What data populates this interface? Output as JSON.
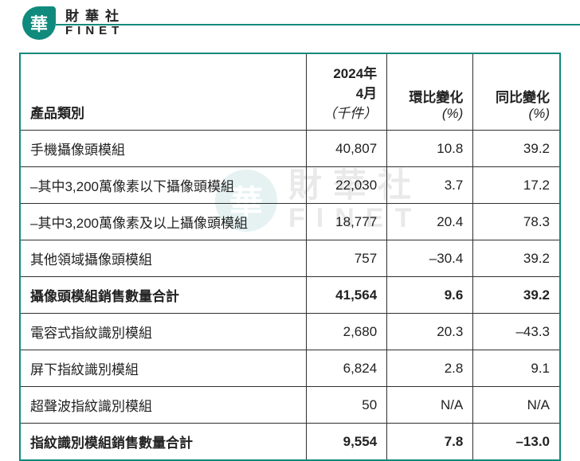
{
  "brand": {
    "logo_char": "華",
    "name_cn": "財華社",
    "name_en": "FINET"
  },
  "table": {
    "header": {
      "category": "產品類別",
      "value_line1": "2024年",
      "value_line2": "4月",
      "value_unit": "（千件）",
      "mom": "環比變化",
      "mom_unit": "(%)",
      "yoy": "同比變化",
      "yoy_unit": "(%)"
    },
    "rows": [
      {
        "category": "手機攝像頭模組",
        "value": "40,807",
        "mom": "10.8",
        "yoy": "39.2",
        "bold": false
      },
      {
        "category": "–其中3,200萬像素以下攝像頭模組",
        "value": "22,030",
        "mom": "3.7",
        "yoy": "17.2",
        "bold": false
      },
      {
        "category": "–其中3,200萬像素及以上攝像頭模組",
        "value": "18,777",
        "mom": "20.4",
        "yoy": "78.3",
        "bold": false
      },
      {
        "category": "其他領域攝像頭模組",
        "value": "757",
        "mom": "–30.4",
        "yoy": "39.2",
        "bold": false
      },
      {
        "category": "攝像頭模組銷售數量合計",
        "value": "41,564",
        "mom": "9.6",
        "yoy": "39.2",
        "bold": true
      },
      {
        "category": "電容式指紋識別模組",
        "value": "2,680",
        "mom": "20.3",
        "yoy": "–43.3",
        "bold": false
      },
      {
        "category": "屏下指紋識別模組",
        "value": "6,824",
        "mom": "2.8",
        "yoy": "9.1",
        "bold": false
      },
      {
        "category": "超聲波指紋識別模組",
        "value": "50",
        "mom": "N/A",
        "yoy": "N/A",
        "bold": false
      },
      {
        "category": "指紋識別模組銷售數量合計",
        "value": "9,554",
        "mom": "7.8",
        "yoy": "–13.0",
        "bold": true
      }
    ]
  },
  "style": {
    "accent_color": "#0f8a7c",
    "border_color": "#2f2f2f",
    "text_color": "#222222",
    "background": "#ffffff",
    "font_size_body": 17,
    "column_widths_pct": [
      53,
      15,
      16,
      16
    ],
    "column_align": [
      "left",
      "right",
      "right",
      "right"
    ]
  }
}
